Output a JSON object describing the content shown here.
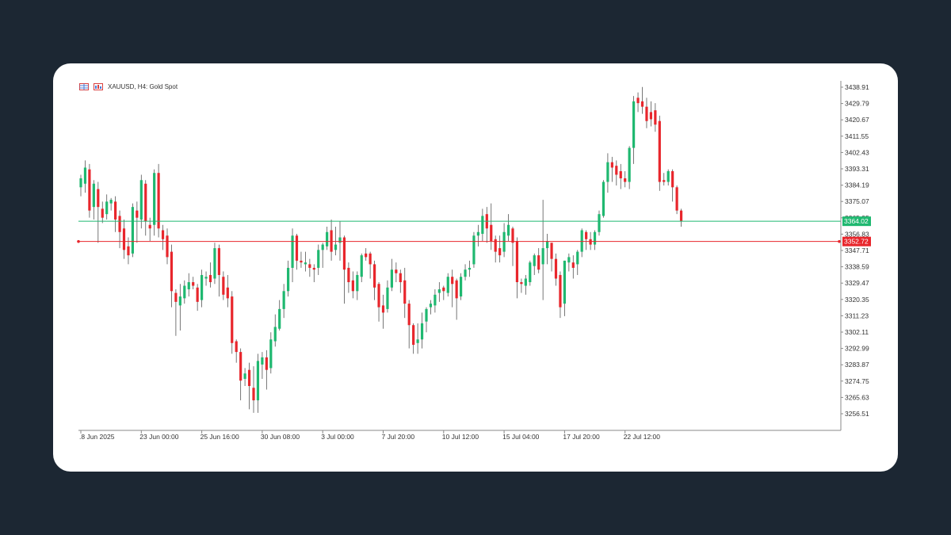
{
  "header": {
    "symbol_text": "XAUUSD, H4:  Gold Spot"
  },
  "colors": {
    "background": "#1c2733",
    "card": "#ffffff",
    "bull": "#1fb870",
    "bear": "#e8262c",
    "wick": "#555555",
    "axis": "#888888",
    "line_green": "#1fb870",
    "line_red": "#e8262c"
  },
  "chart_data": {
    "type": "candlestick",
    "title": "XAUUSD, H4:  Gold Spot",
    "grid": false,
    "y_range": [
      3250.0,
      3443.0
    ],
    "y_ticks": [
      "3438.91",
      "3429.79",
      "3420.67",
      "3411.55",
      "3402.43",
      "3393.31",
      "3384.19",
      "3375.07",
      "3365.95",
      "3356.83",
      "3347.71",
      "3338.59",
      "3329.47",
      "3320.35",
      "3311.23",
      "3302.11",
      "3292.99",
      "3283.87",
      "3274.75",
      "3265.63",
      "3256.51"
    ],
    "x_ticks": [
      {
        "label": ".8 Jun 2025",
        "index": 0
      },
      {
        "label": "23 Jun 00:00",
        "index": 14
      },
      {
        "label": "25 Jun 16:00",
        "index": 28
      },
      {
        "label": "30 Jun 08:00",
        "index": 42
      },
      {
        "label": "3 Jul 00:00",
        "index": 56
      },
      {
        "label": "7 Jul 20:00",
        "index": 70
      },
      {
        "label": "10 Jul 12:00",
        "index": 84
      },
      {
        "label": "15 Jul 04:00",
        "index": 98
      },
      {
        "label": "17 Jul 20:00",
        "index": 112
      },
      {
        "label": "22 Jul 12:00",
        "index": 126
      }
    ],
    "horizontal_lines": [
      {
        "name": "bid",
        "value": 3364.02,
        "label": "3364.02",
        "color": "#1fb870"
      },
      {
        "name": "level",
        "value": 3352.72,
        "label": "3352.72",
        "color": "#e8262c"
      }
    ],
    "candles": [
      [
        3383,
        3388,
        3378,
        3390
      ],
      [
        3385,
        3394,
        3380,
        3398
      ],
      [
        3393,
        3370,
        3366,
        3396
      ],
      [
        3372,
        3385,
        3365,
        3387
      ],
      [
        3382,
        3372,
        3352,
        3386
      ],
      [
        3371,
        3366,
        3363,
        3375
      ],
      [
        3368,
        3375,
        3365,
        3379
      ],
      [
        3374,
        3376,
        3370,
        3377
      ],
      [
        3375,
        3365,
        3358,
        3378
      ],
      [
        3367,
        3358,
        3349,
        3370
      ],
      [
        3360,
        3348,
        3343,
        3365
      ],
      [
        3350,
        3345,
        3340,
        3355
      ],
      [
        3346,
        3372,
        3344,
        3374
      ],
      [
        3370,
        3366,
        3352,
        3375
      ],
      [
        3365,
        3387,
        3360,
        3390
      ],
      [
        3385,
        3364,
        3356,
        3387
      ],
      [
        3362,
        3360,
        3353,
        3366
      ],
      [
        3362,
        3391,
        3356,
        3393
      ],
      [
        3391,
        3360,
        3355,
        3396
      ],
      [
        3359,
        3354,
        3348,
        3362
      ],
      [
        3356,
        3344,
        3340,
        3360
      ],
      [
        3347,
        3325,
        3316,
        3351
      ],
      [
        3324,
        3319,
        3300,
        3326
      ],
      [
        3317,
        3322,
        3303,
        3329
      ],
      [
        3321,
        3328,
        3318,
        3331
      ],
      [
        3326,
        3330,
        3322,
        3335
      ],
      [
        3330,
        3328,
        3326,
        3333
      ],
      [
        3327,
        3319,
        3314,
        3329
      ],
      [
        3320,
        3334,
        3316,
        3337
      ],
      [
        3332,
        3333,
        3328,
        3336
      ],
      [
        3334,
        3330,
        3327,
        3341
      ],
      [
        3332,
        3349,
        3329,
        3352
      ],
      [
        3349,
        3334,
        3322,
        3351
      ],
      [
        3333,
        3323,
        3320,
        3336
      ],
      [
        3327,
        3321,
        3316,
        3334
      ],
      [
        3322,
        3296,
        3290,
        3325
      ],
      [
        3297,
        3291,
        3285,
        3298
      ],
      [
        3291,
        3275,
        3264,
        3293
      ],
      [
        3276,
        3279,
        3272,
        3282
      ],
      [
        3281,
        3272,
        3259,
        3285
      ],
      [
        3271,
        3264,
        3257,
        3283
      ],
      [
        3264,
        3286,
        3257,
        3290
      ],
      [
        3284,
        3288,
        3276,
        3291
      ],
      [
        3288,
        3281,
        3270,
        3292
      ],
      [
        3282,
        3298,
        3279,
        3302
      ],
      [
        3297,
        3305,
        3294,
        3312
      ],
      [
        3304,
        3315,
        3303,
        3320
      ],
      [
        3315,
        3325,
        3310,
        3329
      ],
      [
        3325,
        3338,
        3322,
        3342
      ],
      [
        3338,
        3356,
        3330,
        3360
      ],
      [
        3356,
        3342,
        3337,
        3357
      ],
      [
        3342,
        3341,
        3338,
        3347
      ],
      [
        3340,
        3341,
        3336,
        3347
      ],
      [
        3340,
        3338,
        3333,
        3343
      ],
      [
        3338,
        3337,
        3330,
        3340
      ],
      [
        3338,
        3348,
        3334,
        3351
      ],
      [
        3348,
        3351,
        3338,
        3352
      ],
      [
        3350,
        3358,
        3348,
        3361
      ],
      [
        3359,
        3347,
        3342,
        3365
      ],
      [
        3348,
        3351,
        3345,
        3361
      ],
      [
        3352,
        3355,
        3342,
        3364
      ],
      [
        3355,
        3337,
        3318,
        3356
      ],
      [
        3338,
        3330,
        3324,
        3341
      ],
      [
        3331,
        3325,
        3321,
        3336
      ],
      [
        3325,
        3334,
        3320,
        3336
      ],
      [
        3333,
        3345,
        3330,
        3346
      ],
      [
        3346,
        3344,
        3342,
        3349
      ],
      [
        3346,
        3340,
        3332,
        3347
      ],
      [
        3340,
        3327,
        3320,
        3342
      ],
      [
        3329,
        3316,
        3308,
        3330
      ],
      [
        3317,
        3313,
        3304,
        3323
      ],
      [
        3315,
        3327,
        3313,
        3331
      ],
      [
        3327,
        3337,
        3325,
        3343
      ],
      [
        3337,
        3335,
        3330,
        3341
      ],
      [
        3335,
        3330,
        3324,
        3337
      ],
      [
        3331,
        3318,
        3310,
        3338
      ],
      [
        3318,
        3306,
        3293,
        3320
      ],
      [
        3306,
        3295,
        3290,
        3307
      ],
      [
        3296,
        3298,
        3290,
        3307
      ],
      [
        3298,
        3307,
        3293,
        3313
      ],
      [
        3308,
        3315,
        3302,
        3316
      ],
      [
        3316,
        3318,
        3312,
        3320
      ],
      [
        3317,
        3323,
        3313,
        3326
      ],
      [
        3324,
        3326,
        3319,
        3330
      ],
      [
        3327,
        3325,
        3320,
        3328
      ],
      [
        3324,
        3333,
        3322,
        3335
      ],
      [
        3333,
        3329,
        3316,
        3337
      ],
      [
        3331,
        3321,
        3309,
        3332
      ],
      [
        3322,
        3333,
        3320,
        3335
      ],
      [
        3333,
        3337,
        3331,
        3340
      ],
      [
        3337,
        3338,
        3333,
        3342
      ],
      [
        3340,
        3356,
        3338,
        3358
      ],
      [
        3356,
        3358,
        3350,
        3362
      ],
      [
        3357,
        3367,
        3353,
        3371
      ],
      [
        3368,
        3360,
        3352,
        3372
      ],
      [
        3362,
        3353,
        3348,
        3374
      ],
      [
        3354,
        3347,
        3341,
        3356
      ],
      [
        3349,
        3345,
        3341,
        3356
      ],
      [
        3347,
        3358,
        3344,
        3363
      ],
      [
        3356,
        3362,
        3353,
        3368
      ],
      [
        3360,
        3352,
        3339,
        3361
      ],
      [
        3353,
        3330,
        3321,
        3355
      ],
      [
        3330,
        3329,
        3324,
        3332
      ],
      [
        3328,
        3332,
        3323,
        3334
      ],
      [
        3330,
        3341,
        3328,
        3342
      ],
      [
        3339,
        3345,
        3334,
        3346
      ],
      [
        3345,
        3337,
        3335,
        3349
      ],
      [
        3340,
        3349,
        3320,
        3376
      ],
      [
        3349,
        3353,
        3340,
        3357
      ],
      [
        3352,
        3343,
        3336,
        3352
      ],
      [
        3343,
        3332,
        3328,
        3346
      ],
      [
        3334,
        3316,
        3310,
        3336
      ],
      [
        3318,
        3342,
        3311,
        3342
      ],
      [
        3341,
        3344,
        3336,
        3346
      ],
      [
        3341,
        3338,
        3332,
        3345
      ],
      [
        3340,
        3347,
        3334,
        3348
      ],
      [
        3347,
        3359,
        3344,
        3360
      ],
      [
        3358,
        3354,
        3348,
        3359
      ],
      [
        3354,
        3351,
        3348,
        3358
      ],
      [
        3351,
        3358,
        3348,
        3359
      ],
      [
        3358,
        3368,
        3356,
        3370
      ],
      [
        3367,
        3386,
        3366,
        3387
      ],
      [
        3386,
        3397,
        3380,
        3402
      ],
      [
        3397,
        3394,
        3386,
        3400
      ],
      [
        3395,
        3390,
        3384,
        3398
      ],
      [
        3392,
        3388,
        3382,
        3396
      ],
      [
        3388,
        3386,
        3383,
        3392
      ],
      [
        3386,
        3405,
        3382,
        3406
      ],
      [
        3405,
        3431,
        3396,
        3434
      ],
      [
        3433,
        3430,
        3425,
        3436
      ],
      [
        3431,
        3428,
        3424,
        3439
      ],
      [
        3428,
        3420,
        3416,
        3433
      ],
      [
        3425,
        3421,
        3417,
        3431
      ],
      [
        3426,
        3418,
        3414,
        3430
      ],
      [
        3420,
        3386,
        3381,
        3423
      ],
      [
        3387,
        3386,
        3384,
        3391
      ],
      [
        3386,
        3392,
        3384,
        3393
      ],
      [
        3392,
        3383,
        3375,
        3393
      ],
      [
        3383,
        3370,
        3368,
        3384
      ],
      [
        3370,
        3364,
        3361,
        3371
      ]
    ]
  }
}
